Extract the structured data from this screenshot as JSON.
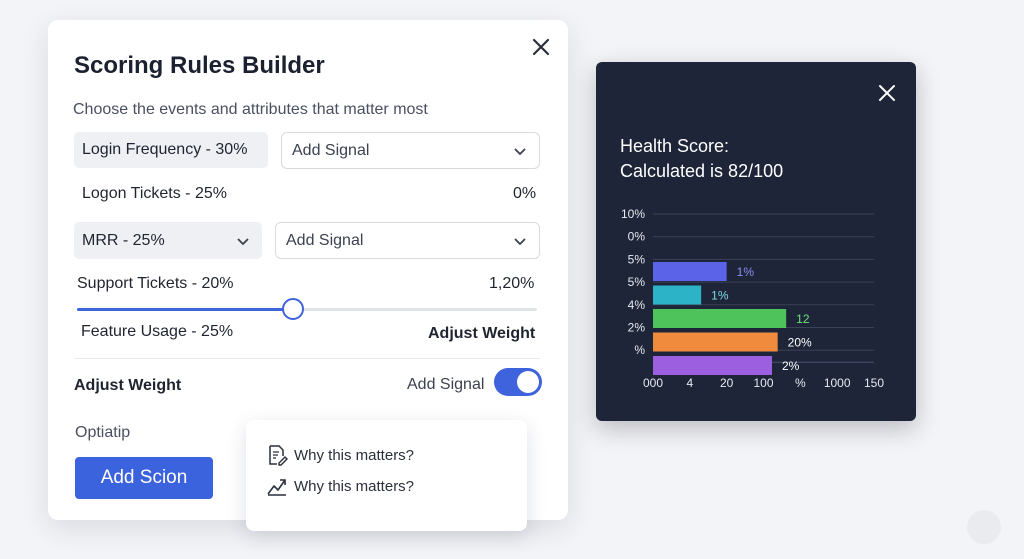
{
  "modal": {
    "title": "Scoring Rules Builder",
    "subtitle": "Choose the events and attributes that matter most",
    "rows": {
      "login_chip": "Login Frequency - 30%",
      "add_signal_1": "Add Signal",
      "logon_tickets": "Logon Tickets - 25%",
      "logon_value": "0%",
      "mrr_select": "MRR - 25%",
      "add_signal_2": "Add Signal",
      "support_tickets": "Support Tickets - 20%",
      "support_value": "1,20%",
      "feature_usage": "Feature Usage - 25%",
      "adjust_weight_right": "Adjust Weight"
    },
    "slider_value_percent": 47,
    "adjust_weight_label": "Adjust Weight",
    "add_signal_toggle_label": "Add Signal",
    "toggle_on": true,
    "optiatip": "Optiatip",
    "primary_button": "Add Scion",
    "accent_color": "#3e63dd"
  },
  "popover": {
    "items": [
      {
        "label": "Why this matters?",
        "icon": "document-edit-icon"
      },
      {
        "label": "Why this matters?",
        "icon": "trend-chart-icon"
      }
    ]
  },
  "panel": {
    "title_line1": "Health Score:",
    "title_line2": "Calculated is 82/100"
  },
  "chart_data": {
    "type": "bar",
    "orientation": "horizontal",
    "y_tick_labels": [
      "10%",
      "0%",
      "5%",
      "5%",
      "4%",
      "2%",
      "%"
    ],
    "x_tick_labels": [
      "000",
      "4",
      "20",
      "100",
      "%",
      "1000",
      "150"
    ],
    "bars": [
      {
        "label": "1%",
        "value": 1.3,
        "color": "#5b63e8",
        "label_color": "#8a90f5"
      },
      {
        "label": "1%",
        "value": 0.85,
        "color": "#2db3c8",
        "label_color": "#7cd9e6"
      },
      {
        "label": "12",
        "value": 2.35,
        "color": "#4ec35c",
        "label_color": "#6fe07c"
      },
      {
        "label": "20%",
        "value": 2.2,
        "color": "#f08a3c",
        "label_color": "#ffffff"
      },
      {
        "label": "2%",
        "value": 2.1,
        "color": "#9b5fe0",
        "label_color": "#ffffff"
      }
    ],
    "x_range": [
      0,
      3.9
    ],
    "grid": true
  }
}
